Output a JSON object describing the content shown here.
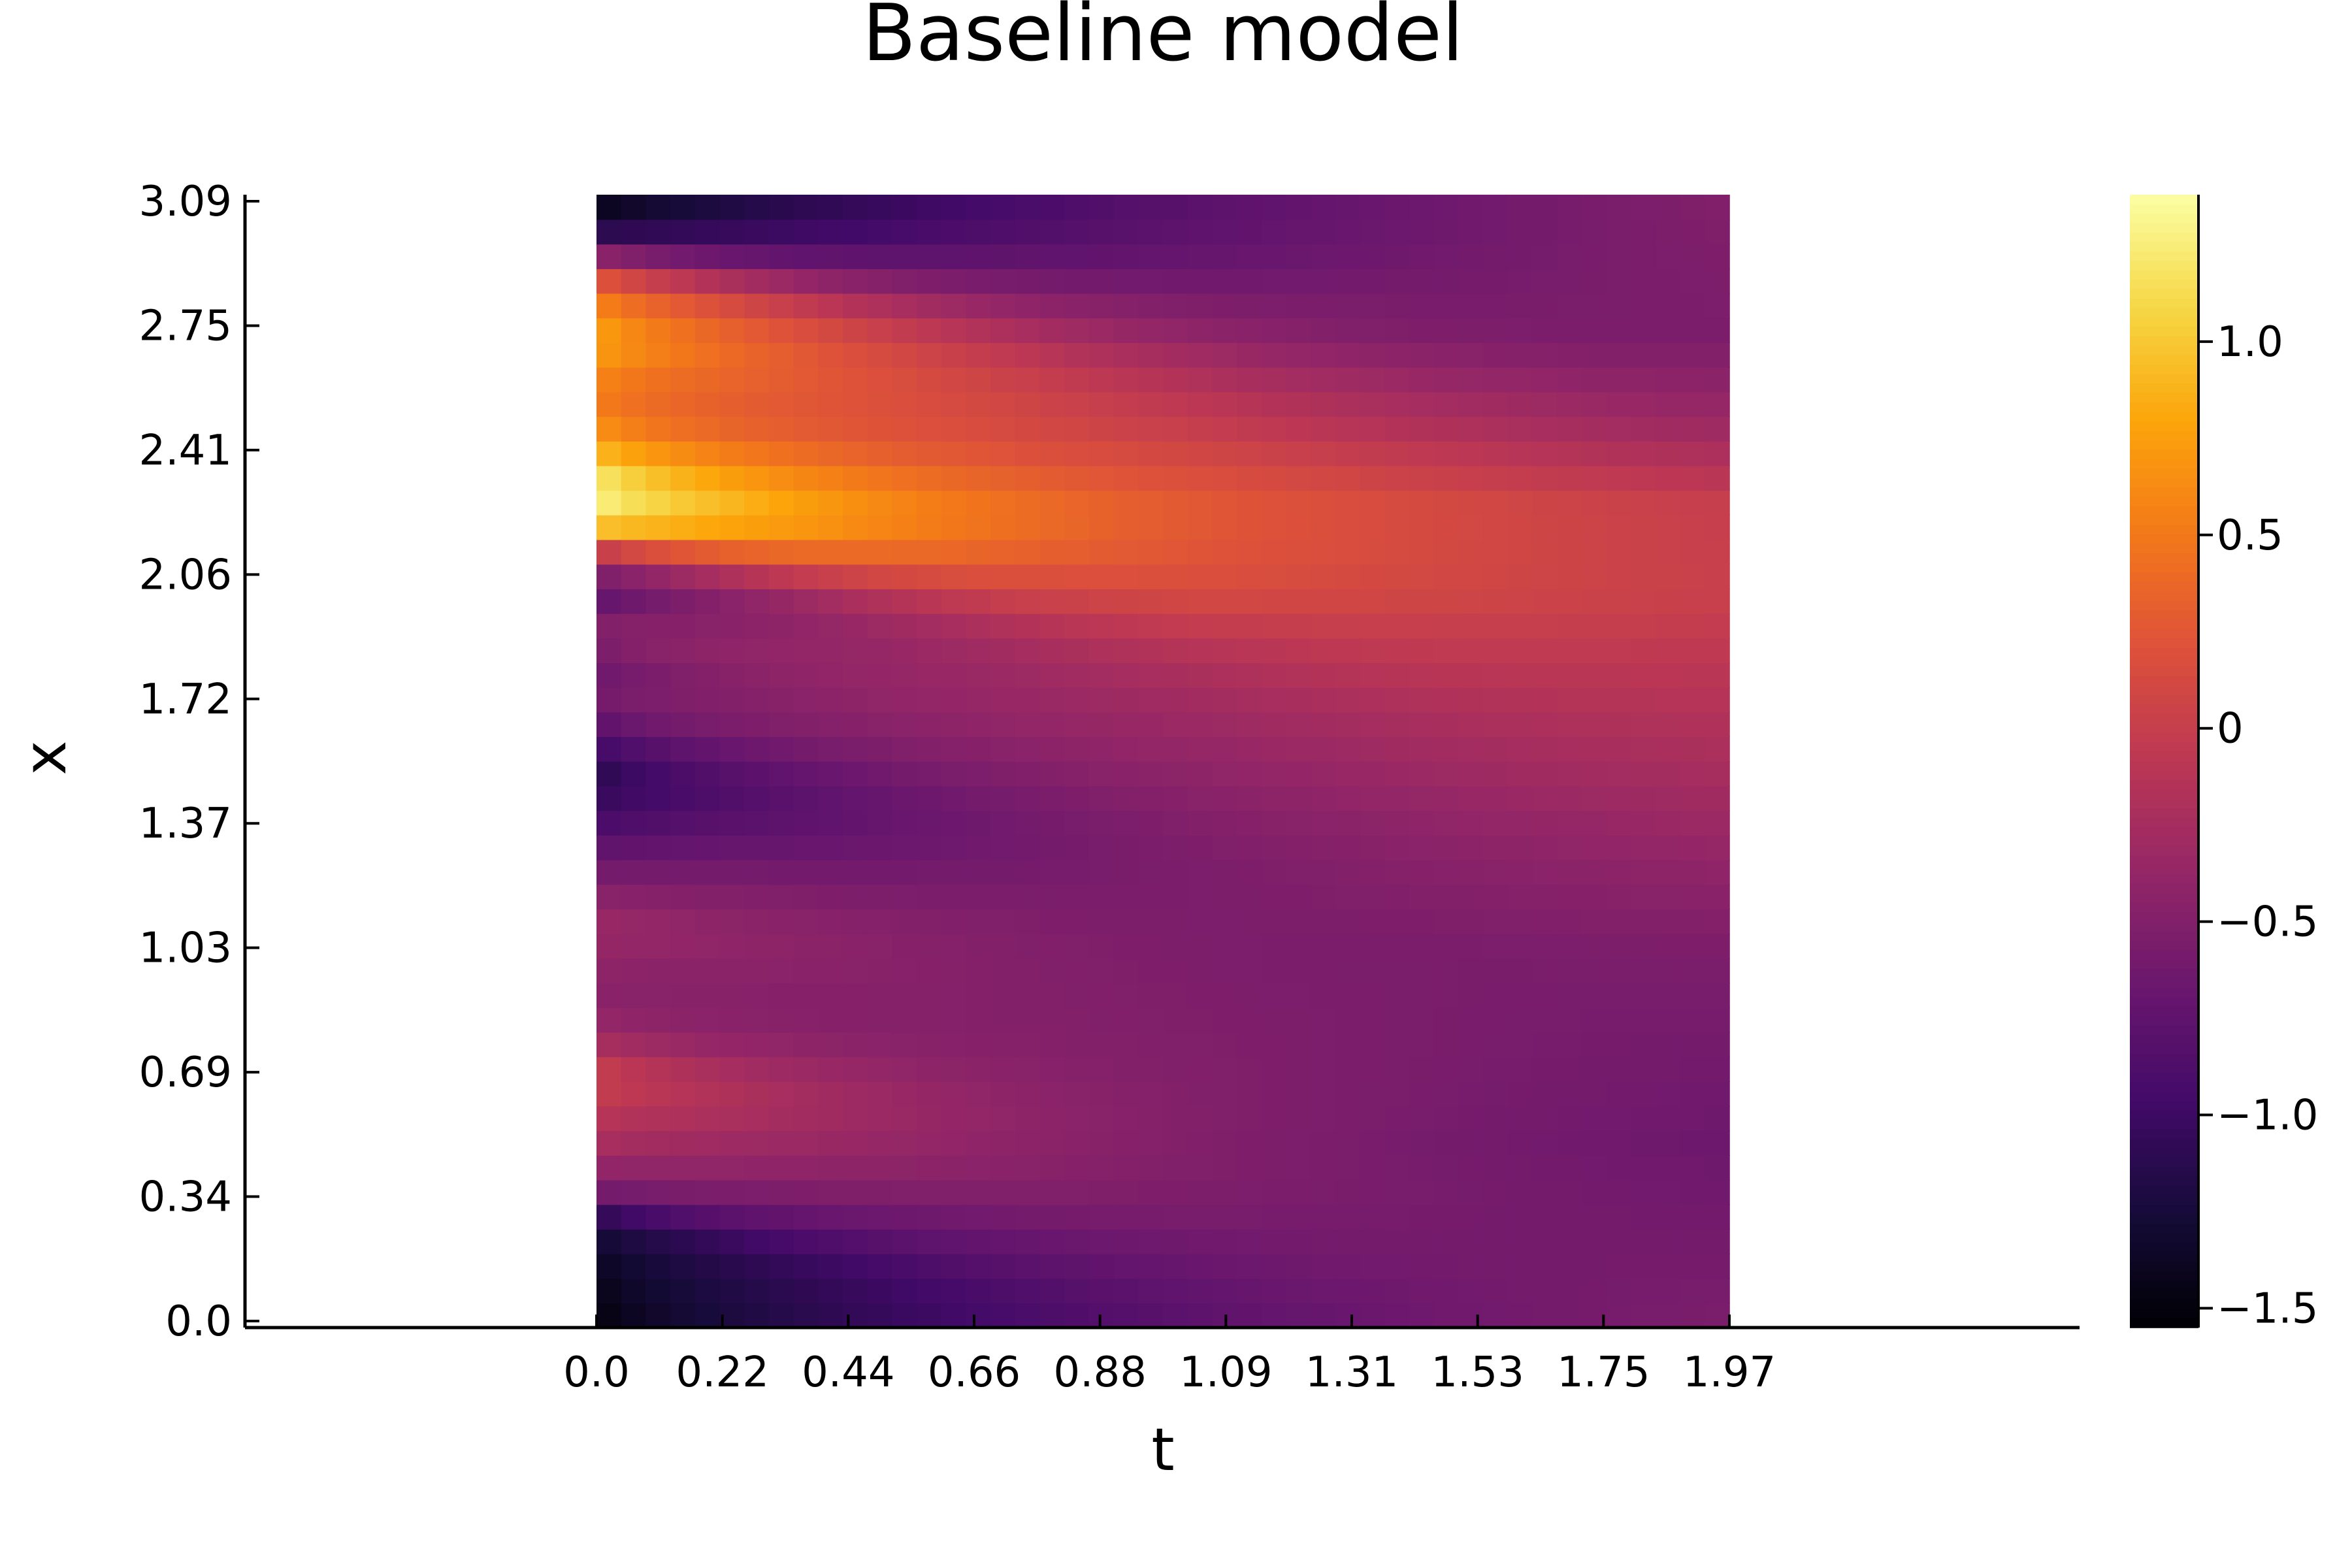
{
  "chart_data": {
    "type": "heatmap",
    "title": "Baseline model",
    "xlabel": "t",
    "ylabel": "x",
    "x_ticks": [
      "0.0",
      "0.22",
      "0.44",
      "0.66",
      "0.88",
      "1.09",
      "1.31",
      "1.53",
      "1.75",
      "1.97"
    ],
    "y_ticks": [
      "0.0",
      "0.34",
      "0.69",
      "1.03",
      "1.37",
      "1.72",
      "2.06",
      "2.41",
      "2.75",
      "3.09"
    ],
    "xlim": [
      0.0,
      1.97
    ],
    "ylim": [
      0.0,
      3.09
    ],
    "colormap": "inferno",
    "colorbar": {
      "range": [
        -1.55,
        1.38
      ],
      "ticks": [
        "1.0",
        "0.5",
        "0",
        "−0.5",
        "−1.0",
        "−1.5"
      ],
      "tick_values": [
        1.0,
        0.5,
        0.0,
        -0.5,
        -1.0,
        -1.5
      ]
    },
    "grid": false,
    "legend": "none",
    "profile_t0": [
      [
        0.0,
        -1.55
      ],
      [
        0.09,
        -1.5
      ],
      [
        0.2,
        -1.4
      ],
      [
        0.3,
        -1.2
      ],
      [
        0.36,
        -0.6
      ],
      [
        0.5,
        -0.2
      ],
      [
        0.69,
        0.1
      ],
      [
        0.8,
        -0.3
      ],
      [
        0.9,
        -0.45
      ],
      [
        1.0,
        -0.4
      ],
      [
        1.1,
        -0.3
      ],
      [
        1.2,
        -0.5
      ],
      [
        1.3,
        -0.75
      ],
      [
        1.4,
        -1.0
      ],
      [
        1.5,
        -1.2
      ],
      [
        1.6,
        -0.95
      ],
      [
        1.7,
        -0.6
      ],
      [
        1.8,
        -0.7
      ],
      [
        1.9,
        -0.45
      ],
      [
        2.0,
        -0.85
      ],
      [
        2.1,
        -0.3
      ],
      [
        2.2,
        1.3
      ],
      [
        2.3,
        1.38
      ],
      [
        2.4,
        0.9
      ],
      [
        2.5,
        0.55
      ],
      [
        2.6,
        0.65
      ],
      [
        2.7,
        0.9
      ],
      [
        2.8,
        0.6
      ],
      [
        2.86,
        0.3
      ],
      [
        2.93,
        -0.5
      ],
      [
        3.0,
        -1.3
      ],
      [
        3.09,
        -1.55
      ]
    ],
    "profile_t197": [
      [
        0.0,
        -0.55
      ],
      [
        0.5,
        -0.65
      ],
      [
        1.0,
        -0.55
      ],
      [
        1.5,
        -0.25
      ],
      [
        2.0,
        0.02
      ],
      [
        2.25,
        0.0
      ],
      [
        2.45,
        -0.3
      ],
      [
        2.7,
        -0.55
      ],
      [
        3.09,
        -0.5
      ]
    ]
  }
}
